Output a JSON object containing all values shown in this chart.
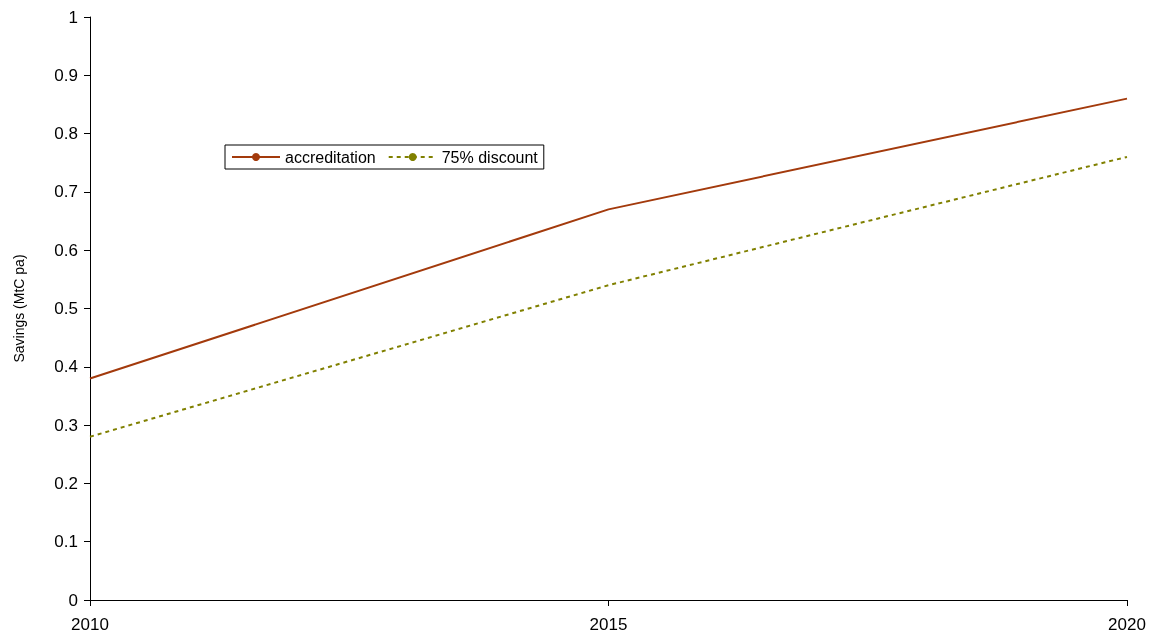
{
  "chart_data": {
    "type": "line",
    "ylabel": "Savings (MtC pa)",
    "x": [
      2010,
      2015,
      2020
    ],
    "series": [
      {
        "name": "accreditation",
        "color": "#a33a0c",
        "values": [
          0.38,
          0.67,
          0.86
        ],
        "line_style": "solid"
      },
      {
        "name": "75% discount",
        "color": "#808000",
        "values": [
          0.28,
          0.54,
          0.76
        ],
        "line_style": "dashed"
      }
    ],
    "xlim": [
      2010,
      2020
    ],
    "xticks": [
      2010,
      2015,
      2020
    ],
    "ylim": [
      0,
      1
    ],
    "yticks": [
      0,
      0.1,
      0.2,
      0.3,
      0.4,
      0.5,
      0.6,
      0.7,
      0.8,
      0.9,
      1
    ],
    "grid": false,
    "legend": "top left",
    "marker": "none"
  }
}
